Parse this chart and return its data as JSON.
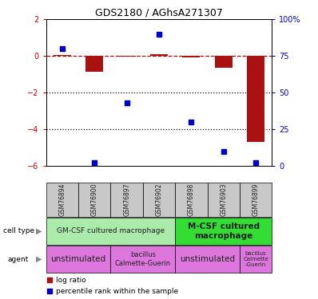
{
  "title": "GDS2180 / AGhsA271307",
  "samples": [
    "GSM76894",
    "GSM76900",
    "GSM76897",
    "GSM76902",
    "GSM76898",
    "GSM76903",
    "GSM76899"
  ],
  "log_ratio": [
    0.05,
    -0.85,
    -0.03,
    0.12,
    -0.08,
    -0.65,
    -4.7
  ],
  "percentile_rank": [
    80,
    2,
    43,
    90,
    30,
    10,
    2
  ],
  "ylim_left": [
    -6,
    2
  ],
  "ylim_right": [
    0,
    100
  ],
  "left_yticks": [
    -6,
    -4,
    -2,
    0,
    2
  ],
  "right_yticks": [
    0,
    25,
    50,
    75,
    100
  ],
  "right_yticklabels": [
    "0",
    "25",
    "50",
    "75",
    "100%"
  ],
  "bar_color": "#aa1111",
  "scatter_color": "#0000cc",
  "dashed_line_color": "#cc0000",
  "dotted_line_color": "#111111",
  "cell_color_light": "#aaeaaa",
  "cell_color_dark": "#33dd33",
  "agent_color": "#dd77dd",
  "gsm_bg_color": "#c8c8c8",
  "legend_red_label": "log ratio",
  "legend_blue_label": "percentile rank within the sample",
  "cell_type_row_label": "cell type",
  "agent_row_label": "agent",
  "tick_label_color_left": "#cc0000",
  "tick_label_color_right": "#0000cc",
  "separator_sample_idx": 3.5
}
